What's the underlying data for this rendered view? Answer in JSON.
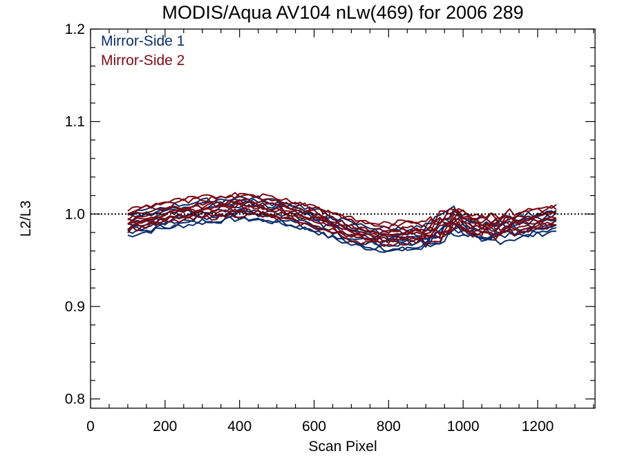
{
  "chart_data": {
    "type": "line",
    "title": "MODIS/Aqua AV104 nLw(469) for 2006 289",
    "xlabel": "Scan Pixel",
    "ylabel": "L2/L3",
    "xlim": [
      0,
      1354
    ],
    "ylim": [
      0.79,
      1.2
    ],
    "xticks": [
      0,
      200,
      400,
      600,
      800,
      1000,
      1200
    ],
    "xtick_labels": [
      "0",
      "200",
      "400",
      "600",
      "800",
      "1000",
      "1200"
    ],
    "yticks": [
      0.8,
      0.9,
      1.0,
      1.1,
      1.2
    ],
    "ytick_labels": [
      "0.8",
      "0.9",
      "1.0",
      "1.1",
      "1.2"
    ],
    "reference_line": 1.0,
    "colors": {
      "mirror_side_1": "#0b2d6b",
      "mirror_side_2": "#7a0a14"
    },
    "legend": [
      "Mirror-Side 1",
      "Mirror-Side 2"
    ],
    "legend_placement": "top-left",
    "x": [
      100,
      150,
      200,
      250,
      300,
      350,
      400,
      450,
      500,
      550,
      600,
      650,
      700,
      750,
      800,
      850,
      900,
      950,
      975,
      1000,
      1050,
      1100,
      1150,
      1200,
      1250
    ],
    "series": [
      {
        "name": "Mirror-Side 1",
        "values": [
          0.988,
          0.992,
          0.996,
          0.999,
          1.002,
          1.004,
          1.006,
          1.005,
          1.002,
          0.998,
          0.993,
          0.985,
          0.978,
          0.974,
          0.972,
          0.973,
          0.974,
          0.985,
          0.993,
          0.987,
          0.981,
          0.983,
          0.986,
          0.989,
          0.993
        ]
      },
      {
        "name": "Mirror-Side 2",
        "values": [
          0.993,
          0.997,
          1.001,
          1.004,
          1.006,
          1.008,
          1.01,
          1.009,
          1.006,
          1.002,
          0.997,
          0.99,
          0.983,
          0.979,
          0.978,
          0.98,
          0.981,
          0.989,
          0.997,
          0.992,
          0.987,
          0.988,
          0.991,
          0.994,
          0.998
        ]
      }
    ]
  }
}
